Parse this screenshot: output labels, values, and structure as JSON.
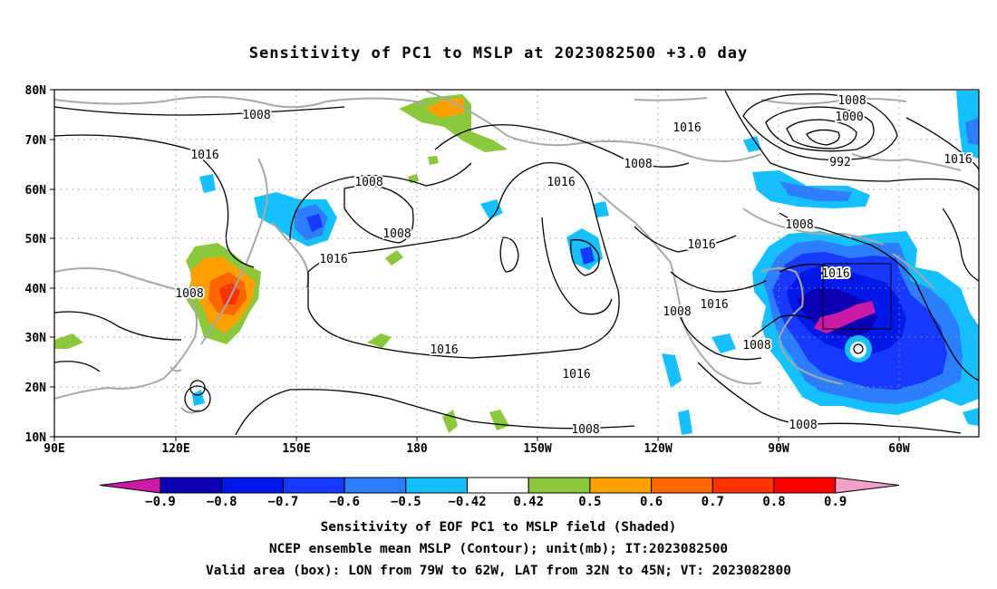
{
  "title": "Sensitivity of PC1 to MSLP at 2023082500 +3.0 day",
  "map": {
    "lon_range": [
      "90E",
      "47W"
    ],
    "lat_range": [
      "10N",
      "80N"
    ],
    "lat_ticks": [
      "80N",
      "70N",
      "60N",
      "50N",
      "40N",
      "30N",
      "20N",
      "10N"
    ],
    "lon_ticks": [
      "90E",
      "120E",
      "150E",
      "180",
      "150W",
      "120W",
      "90W",
      "60W"
    ],
    "grid": "dotted",
    "coastline_color": "#a8a8a8",
    "contour_color": "#000000",
    "contour_labels": [
      "1008",
      "1016",
      "1008",
      "1008",
      "1016",
      "1008",
      "1016",
      "1008",
      "1016",
      "1016",
      "1008",
      "1016",
      "1008",
      "1000",
      "992",
      "1016",
      "1008",
      "1016",
      "1008",
      "1008",
      "1008",
      "1016",
      "1008"
    ],
    "valid_box": {
      "lon_from": "79W",
      "lon_to": "62W",
      "lat_from": "32N",
      "lat_to": "45N"
    }
  },
  "colorbar": {
    "colors": [
      "#cc1aa8",
      "#0a00b4",
      "#0019e8",
      "#1638ff",
      "#2d7dff",
      "#14c0ff",
      "#ffffff",
      "#8cc83c",
      "#ffa000",
      "#ff6600",
      "#ff3200",
      "#ff0000",
      "#f2a0c8"
    ],
    "labels": [
      "−0.9",
      "−0.8",
      "−0.7",
      "−0.6",
      "−0.5",
      "−0.42",
      "0.42",
      "0.5",
      "0.6",
      "0.7",
      "0.8",
      "0.9"
    ]
  },
  "caption": [
    "Sensitivity of EOF PC1 to MSLP field (Shaded)",
    "NCEP ensemble mean MSLP (Contour); unit(mb); IT:2023082500",
    "Valid area (box): LON from 79W to 62W, LAT from 32N to 45N; VT: 2023082800"
  ]
}
